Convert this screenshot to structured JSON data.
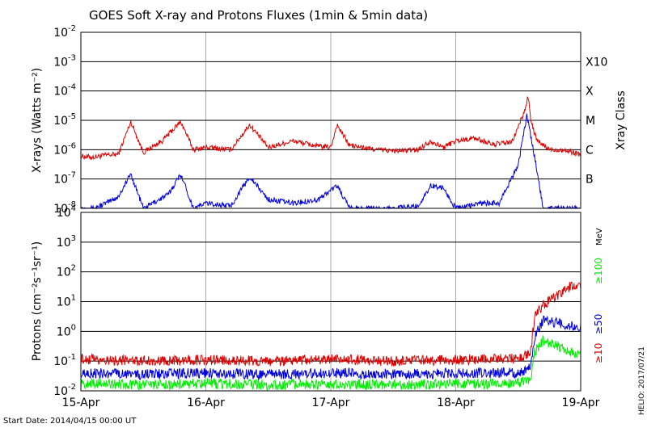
{
  "title": "GOES Soft X-ray and Protons Fluxes   (1min & 5min data)",
  "start_date": "Start Date: 2014/04/15 00:00 UT",
  "credit": "HELIO: 2017/07/21",
  "colors": {
    "red": "#dd0000",
    "blue": "#0000dd",
    "green": "#00ee00",
    "grid": "#aaaaaa"
  },
  "chart_data": [
    {
      "type": "line",
      "panel": "xray",
      "ylabel": "X-rays (Watts m⁻²)",
      "yscale": "log",
      "ylim": [
        1e-08,
        0.01
      ],
      "xlim": [
        "2014-04-15",
        "2014-04-19"
      ],
      "x_ticks": [
        "15-Apr",
        "16-Apr",
        "17-Apr",
        "18-Apr",
        "19-Apr"
      ],
      "y_ticks": [
        {
          "mant": "10",
          "exp": "-8"
        },
        {
          "mant": "10",
          "exp": "-7"
        },
        {
          "mant": "10",
          "exp": "-6"
        },
        {
          "mant": "10",
          "exp": "-5"
        },
        {
          "mant": "10",
          "exp": "-4"
        },
        {
          "mant": "10",
          "exp": "-3"
        },
        {
          "mant": "10",
          "exp": "-2"
        }
      ],
      "right_axis_label": "Xray Class",
      "class_labels": [
        {
          "label": "B",
          "value": 1e-07
        },
        {
          "label": "C",
          "value": 1e-06
        },
        {
          "label": "M",
          "value": 1e-05
        },
        {
          "label": "X",
          "value": 0.0001
        },
        {
          "label": "X10",
          "value": 0.001
        }
      ],
      "series": [
        {
          "color": "red",
          "points": [
            [
              0.0,
              6e-07
            ],
            [
              0.1,
              5.5e-07
            ],
            [
              0.2,
              6.5e-07
            ],
            [
              0.3,
              7e-07
            ],
            [
              0.4,
              9e-06
            ],
            [
              0.5,
              8e-07
            ],
            [
              0.65,
              2e-06
            ],
            [
              0.8,
              9e-06
            ],
            [
              0.9,
              1e-06
            ],
            [
              1.0,
              1.2e-06
            ],
            [
              1.2,
              1e-06
            ],
            [
              1.35,
              7e-06
            ],
            [
              1.5,
              1.2e-06
            ],
            [
              1.7,
              2e-06
            ],
            [
              1.9,
              1.3e-06
            ],
            [
              2.0,
              1.2e-06
            ],
            [
              2.05,
              7e-06
            ],
            [
              2.15,
              1.4e-06
            ],
            [
              2.3,
              1.1e-06
            ],
            [
              2.5,
              9e-07
            ],
            [
              2.7,
              1e-06
            ],
            [
              2.8,
              2e-06
            ],
            [
              2.9,
              1.2e-06
            ],
            [
              3.0,
              2e-06
            ],
            [
              3.15,
              2.5e-06
            ],
            [
              3.3,
              1.5e-06
            ],
            [
              3.45,
              1.8e-06
            ],
            [
              3.55,
              2e-05
            ],
            [
              3.58,
              7e-05
            ],
            [
              3.6,
              1e-05
            ],
            [
              3.65,
              2e-06
            ],
            [
              3.75,
              1e-06
            ],
            [
              3.85,
              1e-06
            ],
            [
              4.0,
              7e-07
            ]
          ]
        },
        {
          "color": "blue",
          "points": [
            [
              0.0,
              1e-08
            ],
            [
              0.1,
              1e-08
            ],
            [
              0.2,
              1.5e-08
            ],
            [
              0.3,
              2.5e-08
            ],
            [
              0.4,
              1.5e-07
            ],
            [
              0.5,
              1e-08
            ],
            [
              0.7,
              3e-08
            ],
            [
              0.8,
              1.5e-07
            ],
            [
              0.9,
              1e-08
            ],
            [
              1.0,
              1.5e-08
            ],
            [
              1.2,
              1.2e-08
            ],
            [
              1.35,
              1.2e-07
            ],
            [
              1.5,
              2e-08
            ],
            [
              1.7,
              1.5e-08
            ],
            [
              1.9,
              2e-08
            ],
            [
              2.05,
              6e-08
            ],
            [
              2.15,
              1e-08
            ],
            [
              2.3,
              1e-08
            ],
            [
              2.5,
              1e-08
            ],
            [
              2.7,
              1.2e-08
            ],
            [
              2.8,
              6e-08
            ],
            [
              2.9,
              5e-08
            ],
            [
              3.0,
              1e-08
            ],
            [
              3.2,
              1.5e-08
            ],
            [
              3.35,
              1.5e-08
            ],
            [
              3.5,
              3e-07
            ],
            [
              3.57,
              1.5e-05
            ],
            [
              3.6,
              3e-06
            ],
            [
              3.65,
              2e-07
            ],
            [
              3.7,
              1e-08
            ],
            [
              3.85,
              1e-08
            ],
            [
              4.0,
              1e-08
            ]
          ]
        }
      ]
    },
    {
      "type": "line",
      "panel": "protons",
      "ylabel": "Protons (cm⁻²s⁻¹sr⁻¹)",
      "yscale": "log",
      "ylim": [
        0.01,
        10000
      ],
      "xlim": [
        "2014-04-15",
        "2014-04-19"
      ],
      "x_ticks": [
        "15-Apr",
        "16-Apr",
        "17-Apr",
        "18-Apr",
        "19-Apr"
      ],
      "y_ticks": [
        {
          "mant": "10",
          "exp": "-2"
        },
        {
          "mant": "10",
          "exp": "-1"
        },
        {
          "mant": "10",
          "exp": "0"
        },
        {
          "mant": "10",
          "exp": "1"
        },
        {
          "mant": "10",
          "exp": "2"
        },
        {
          "mant": "10",
          "exp": "3"
        },
        {
          "mant": "10",
          "exp": "4"
        }
      ],
      "threshold": 10,
      "unit_label": "MeV",
      "series": [
        {
          "name": "≥10",
          "color": "red",
          "points": [
            [
              0.0,
              0.12
            ],
            [
              0.5,
              0.1
            ],
            [
              1.0,
              0.11
            ],
            [
              1.5,
              0.1
            ],
            [
              2.0,
              0.12
            ],
            [
              2.5,
              0.1
            ],
            [
              3.0,
              0.11
            ],
            [
              3.5,
              0.12
            ],
            [
              3.6,
              0.2
            ],
            [
              3.63,
              3
            ],
            [
              3.7,
              8
            ],
            [
              3.8,
              15
            ],
            [
              3.9,
              30
            ],
            [
              4.0,
              40
            ]
          ]
        },
        {
          "name": "≥50",
          "color": "blue",
          "points": [
            [
              0.0,
              0.04
            ],
            [
              0.5,
              0.035
            ],
            [
              1.0,
              0.04
            ],
            [
              1.5,
              0.035
            ],
            [
              2.0,
              0.04
            ],
            [
              2.5,
              0.035
            ],
            [
              3.0,
              0.04
            ],
            [
              3.5,
              0.04
            ],
            [
              3.6,
              0.06
            ],
            [
              3.63,
              0.6
            ],
            [
              3.7,
              2.5
            ],
            [
              3.8,
              2.0
            ],
            [
              3.9,
              1.6
            ],
            [
              4.0,
              1.4
            ]
          ]
        },
        {
          "name": "≥100",
          "color": "green",
          "points": [
            [
              0.0,
              0.018
            ],
            [
              0.5,
              0.016
            ],
            [
              1.0,
              0.018
            ],
            [
              1.5,
              0.016
            ],
            [
              2.0,
              0.017
            ],
            [
              2.5,
              0.016
            ],
            [
              3.0,
              0.017
            ],
            [
              3.5,
              0.018
            ],
            [
              3.6,
              0.025
            ],
            [
              3.63,
              0.2
            ],
            [
              3.7,
              0.5
            ],
            [
              3.8,
              0.35
            ],
            [
              3.9,
              0.22
            ],
            [
              4.0,
              0.15
            ]
          ]
        }
      ]
    }
  ]
}
